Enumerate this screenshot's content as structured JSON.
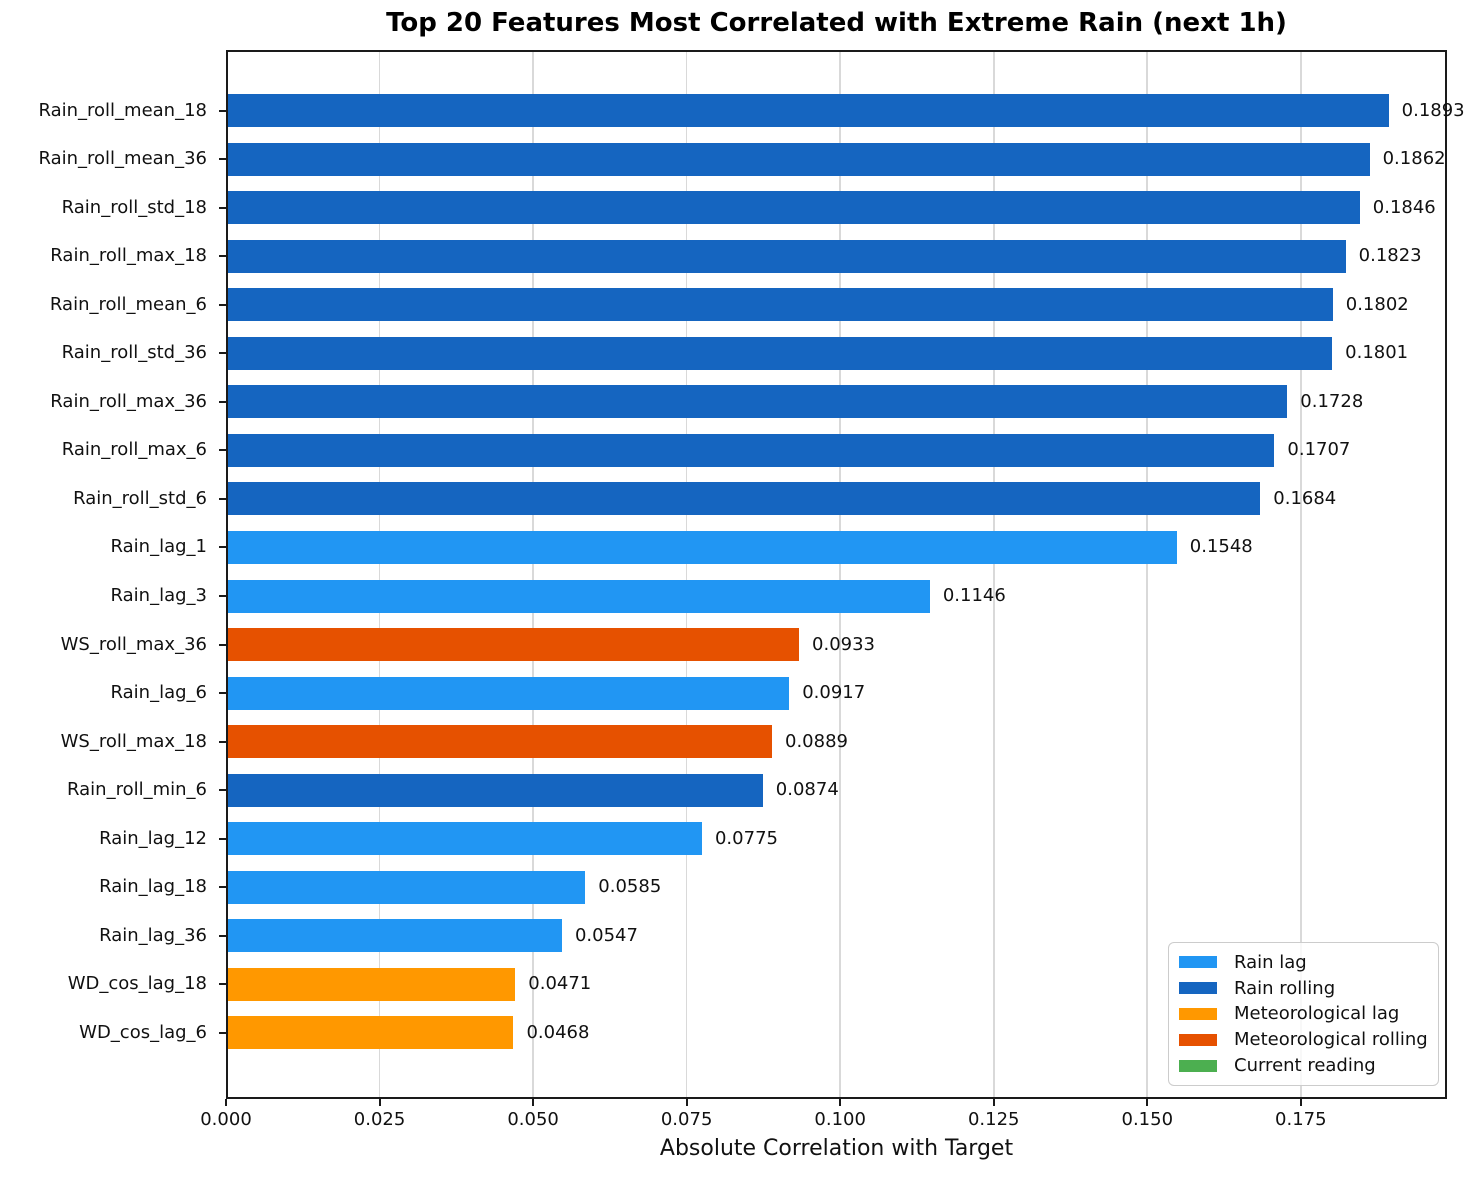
{
  "chart": {
    "title": "Top 20 Features Most Correlated with Extreme Rain (next 1h)",
    "xlabel": "Absolute Correlation with Target"
  },
  "chart_data": {
    "type": "bar",
    "orientation": "horizontal",
    "title": "Top 20 Features Most Correlated with Extreme Rain (next 1h)",
    "xlabel": "Absolute Correlation with Target",
    "ylabel": "",
    "xlim": [
      0,
      0.1988
    ],
    "x_ticks": [
      0.0,
      0.025,
      0.05,
      0.075,
      0.1,
      0.125,
      0.15,
      0.175
    ],
    "x_tick_labels": [
      "0.000",
      "0.025",
      "0.050",
      "0.075",
      "0.100",
      "0.125",
      "0.150",
      "0.175"
    ],
    "grid": true,
    "value_label_decimals": 4,
    "legend": {
      "position": "lower-right",
      "entries": [
        {
          "label": "Rain lag",
          "color": "#2196F3"
        },
        {
          "label": "Rain rolling",
          "color": "#1565C0"
        },
        {
          "label": "Meteorological lag",
          "color": "#FF9800"
        },
        {
          "label": "Meteorological rolling",
          "color": "#E65100"
        },
        {
          "label": "Current reading",
          "color": "#4CAF50"
        }
      ]
    },
    "group_colors": {
      "Rain lag": "#2196F3",
      "Rain rolling": "#1565C0",
      "Meteorological lag": "#FF9800",
      "Meteorological rolling": "#E65100",
      "Current reading": "#4CAF50"
    },
    "bars": [
      {
        "feature": "Rain_roll_mean_18",
        "value": 0.1893,
        "group": "Rain rolling"
      },
      {
        "feature": "Rain_roll_mean_36",
        "value": 0.1862,
        "group": "Rain rolling"
      },
      {
        "feature": "Rain_roll_std_18",
        "value": 0.1846,
        "group": "Rain rolling"
      },
      {
        "feature": "Rain_roll_max_18",
        "value": 0.1823,
        "group": "Rain rolling"
      },
      {
        "feature": "Rain_roll_mean_6",
        "value": 0.1802,
        "group": "Rain rolling"
      },
      {
        "feature": "Rain_roll_std_36",
        "value": 0.1801,
        "group": "Rain rolling"
      },
      {
        "feature": "Rain_roll_max_36",
        "value": 0.1728,
        "group": "Rain rolling"
      },
      {
        "feature": "Rain_roll_max_6",
        "value": 0.1707,
        "group": "Rain rolling"
      },
      {
        "feature": "Rain_roll_std_6",
        "value": 0.1684,
        "group": "Rain rolling"
      },
      {
        "feature": "Rain_lag_1",
        "value": 0.1548,
        "group": "Rain lag"
      },
      {
        "feature": "Rain_lag_3",
        "value": 0.1146,
        "group": "Rain lag"
      },
      {
        "feature": "WS_roll_max_36",
        "value": 0.0933,
        "group": "Meteorological rolling"
      },
      {
        "feature": "Rain_lag_6",
        "value": 0.0917,
        "group": "Rain lag"
      },
      {
        "feature": "WS_roll_max_18",
        "value": 0.0889,
        "group": "Meteorological rolling"
      },
      {
        "feature": "Rain_roll_min_6",
        "value": 0.0874,
        "group": "Rain rolling"
      },
      {
        "feature": "Rain_lag_12",
        "value": 0.0775,
        "group": "Rain lag"
      },
      {
        "feature": "Rain_lag_18",
        "value": 0.0585,
        "group": "Rain lag"
      },
      {
        "feature": "Rain_lag_36",
        "value": 0.0547,
        "group": "Rain lag"
      },
      {
        "feature": "WD_cos_lag_18",
        "value": 0.0471,
        "group": "Meteorological lag"
      },
      {
        "feature": "WD_cos_lag_6",
        "value": 0.0468,
        "group": "Meteorological lag"
      }
    ]
  }
}
